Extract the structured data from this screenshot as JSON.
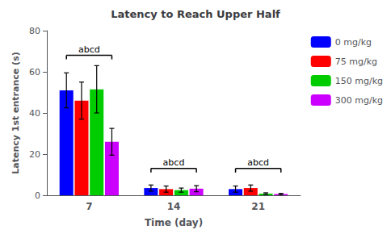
{
  "chart_data": {
    "type": "bar",
    "title": "Latency to Reach Upper Half",
    "xlabel": "Time (day)",
    "ylabel": "Latency 1st entrance (s)",
    "categories": [
      "7",
      "14",
      "21"
    ],
    "series": [
      {
        "name": "0 mg/kg",
        "color": "#0000FF",
        "values": [
          51,
          3.5,
          3.0
        ],
        "errors": [
          8.5,
          1.5,
          1.5
        ]
      },
      {
        "name": "75 mg/kg",
        "color": "#FF0000",
        "values": [
          46,
          3.0,
          3.5
        ],
        "errors": [
          9.0,
          1.5,
          1.5
        ]
      },
      {
        "name": "150 mg/kg",
        "color": "#00CC00",
        "values": [
          51.5,
          2.5,
          0.8
        ],
        "errors": [
          11.5,
          1.0,
          0.4
        ]
      },
      {
        "name": "300 mg/kg",
        "color": "#CC00FF",
        "values": [
          26,
          3.2,
          0.6
        ],
        "errors": [
          6.5,
          1.5,
          0.3
        ]
      }
    ],
    "annotations": [
      {
        "text": "abcd",
        "x": "7",
        "y": 68
      },
      {
        "text": "abcd",
        "x": "14",
        "y": 13
      },
      {
        "text": "abcd",
        "x": "21",
        "y": 13
      }
    ],
    "ylim": [
      0,
      80
    ],
    "yticks": [
      0,
      20,
      40,
      60,
      80
    ],
    "grid": false,
    "legend": "right"
  }
}
